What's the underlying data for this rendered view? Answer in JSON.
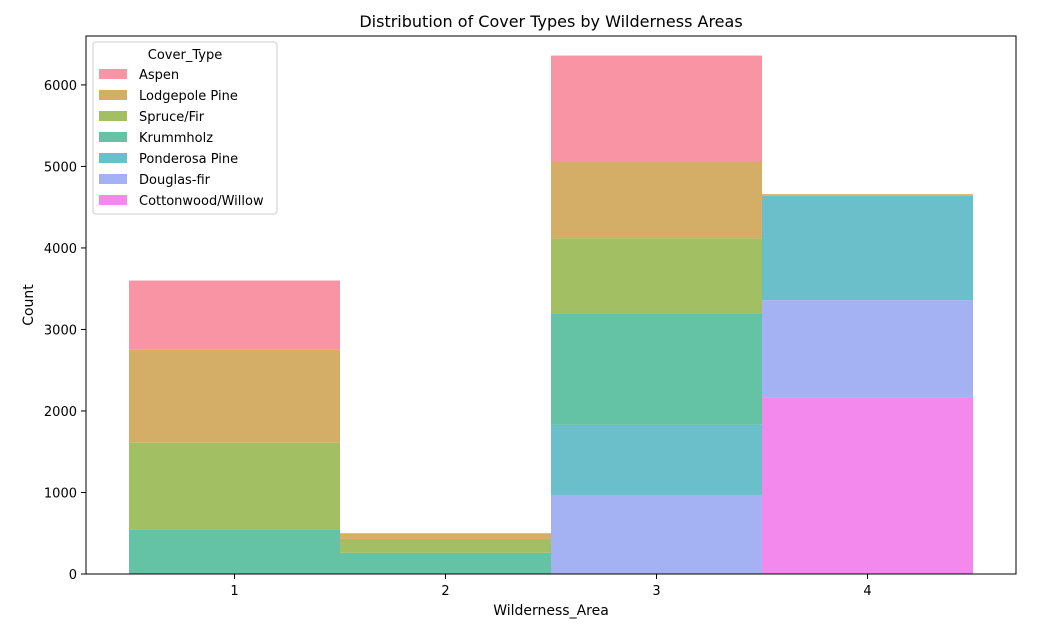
{
  "chart_data": {
    "type": "bar",
    "stacked": true,
    "title": "Distribution of Cover Types by Wilderness Areas",
    "xlabel": "Wilderness_Area",
    "ylabel": "Count",
    "categories": [
      "1",
      "2",
      "3",
      "4"
    ],
    "ylim": [
      0,
      6600
    ],
    "yticks": [
      0,
      1000,
      2000,
      3000,
      4000,
      5000,
      6000
    ],
    "legend": {
      "title": "Cover_Type",
      "placement": "top-left"
    },
    "series": [
      {
        "name": "Aspen",
        "color": "#f994a4",
        "values": [
          850,
          0,
          1300,
          0
        ]
      },
      {
        "name": "Lodgepole Pine",
        "color": "#d4ae66",
        "values": [
          1140,
          70,
          940,
          20
        ]
      },
      {
        "name": "Spruce/Fir",
        "color": "#a2bf64",
        "values": [
          1060,
          170,
          920,
          0
        ]
      },
      {
        "name": "Krummholz",
        "color": "#65c3a5",
        "values": [
          550,
          260,
          1370,
          0
        ]
      },
      {
        "name": "Ponderosa Pine",
        "color": "#6bbfcb",
        "values": [
          0,
          0,
          860,
          1280
        ]
      },
      {
        "name": "Douglas-fir",
        "color": "#a4b2f4",
        "values": [
          0,
          0,
          970,
          1190
        ]
      },
      {
        "name": "Cottonwood/Willow",
        "color": "#f489ed",
        "values": [
          0,
          0,
          0,
          2170
        ]
      }
    ]
  }
}
